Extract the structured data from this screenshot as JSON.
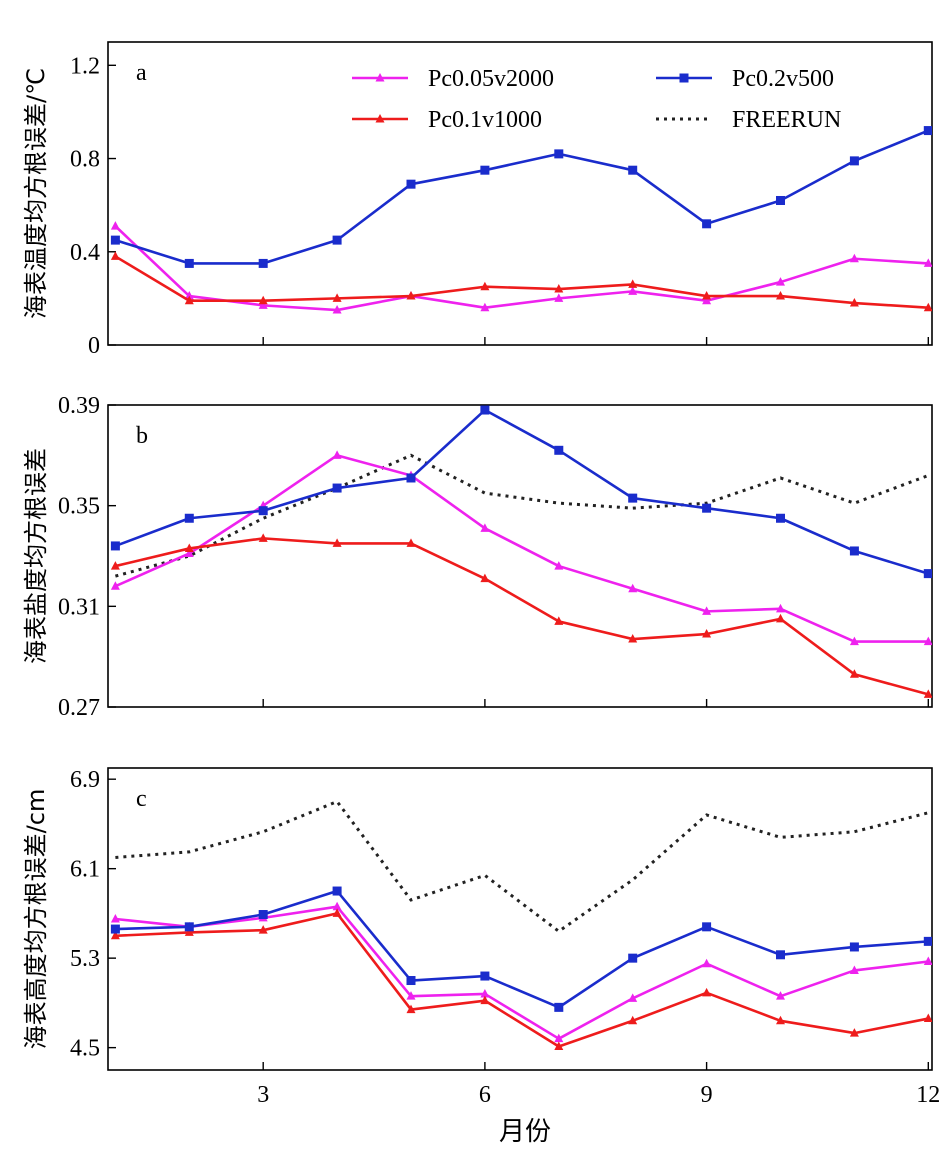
{
  "xlabel": "月份",
  "colors": {
    "Pc0.05v2000": "#ee22ee",
    "Pc0.1v1000": "#ee1c1c",
    "Pc0.2v500": "#1a2ccc",
    "FREERUN": "#222222"
  },
  "chart_data": [
    {
      "type": "line",
      "panel": "a",
      "ylabel": "海表温度均方根误差/℃",
      "x": [
        1,
        2,
        3,
        4,
        5,
        6,
        7,
        8,
        9,
        10,
        11,
        12
      ],
      "xticks": [
        3,
        6,
        9,
        12
      ],
      "xlim": [
        0.9,
        12.05
      ],
      "yticks": [
        "0",
        "0.4",
        "0.8",
        "1.2"
      ],
      "ylim": [
        0,
        1.3
      ],
      "legend": {
        "placement": "top-right",
        "entries": [
          "Pc0.05v2000",
          "Pc0.2v500",
          "Pc0.1v1000",
          "FREERUN"
        ]
      },
      "series": [
        {
          "name": "Pc0.05v2000",
          "marker": "triangle",
          "values": [
            0.51,
            0.21,
            0.17,
            0.15,
            0.21,
            0.16,
            0.2,
            0.23,
            0.19,
            0.27,
            0.37,
            0.35
          ]
        },
        {
          "name": "Pc0.1v1000",
          "marker": "triangle",
          "values": [
            0.38,
            0.19,
            0.19,
            0.2,
            0.21,
            0.25,
            0.24,
            0.26,
            0.21,
            0.21,
            0.18,
            0.16
          ]
        },
        {
          "name": "Pc0.2v500",
          "marker": "square",
          "values": [
            0.45,
            0.35,
            0.35,
            0.45,
            0.69,
            0.75,
            0.82,
            0.75,
            0.52,
            0.62,
            0.79,
            0.92
          ]
        }
      ]
    },
    {
      "type": "line",
      "panel": "b",
      "ylabel": "海表盐度均方根误差",
      "x": [
        1,
        2,
        3,
        4,
        5,
        6,
        7,
        8,
        9,
        10,
        11,
        12
      ],
      "xticks": [
        3,
        6,
        9,
        12
      ],
      "xlim": [
        0.9,
        12.05
      ],
      "yticks": [
        "0.27",
        "0.31",
        "0.35",
        "0.39"
      ],
      "ylim": [
        0.27,
        0.39
      ],
      "series": [
        {
          "name": "Pc0.05v2000",
          "marker": "triangle",
          "values": [
            0.318,
            0.331,
            0.35,
            0.37,
            0.362,
            0.341,
            0.326,
            0.317,
            0.308,
            0.309,
            0.296,
            0.296
          ]
        },
        {
          "name": "Pc0.1v1000",
          "marker": "triangle",
          "values": [
            0.326,
            0.333,
            0.337,
            0.335,
            0.335,
            0.321,
            0.304,
            0.297,
            0.299,
            0.305,
            0.283,
            0.275
          ]
        },
        {
          "name": "Pc0.2v500",
          "marker": "square",
          "values": [
            0.334,
            0.345,
            0.348,
            0.357,
            0.361,
            0.388,
            0.372,
            0.353,
            0.349,
            0.345,
            0.332,
            0.323
          ]
        },
        {
          "name": "FREERUN",
          "marker": "none",
          "values": [
            0.322,
            0.33,
            0.345,
            0.357,
            0.37,
            0.355,
            0.351,
            0.349,
            0.351,
            0.361,
            0.351,
            0.362
          ]
        }
      ]
    },
    {
      "type": "line",
      "panel": "c",
      "ylabel": "海表高度均方根误差/cm",
      "x": [
        1,
        2,
        3,
        4,
        5,
        6,
        7,
        8,
        9,
        10,
        11,
        12
      ],
      "xticks": [
        3,
        6,
        9,
        12
      ],
      "xlim": [
        0.9,
        12.05
      ],
      "yticks": [
        "4.5",
        "5.3",
        "6.1",
        "6.9"
      ],
      "ylim": [
        4.3,
        7.0
      ],
      "series": [
        {
          "name": "Pc0.05v2000",
          "marker": "triangle",
          "values": [
            5.65,
            5.58,
            5.66,
            5.76,
            4.96,
            4.98,
            4.58,
            4.94,
            5.25,
            4.96,
            5.19,
            5.27
          ]
        },
        {
          "name": "Pc0.1v1000",
          "marker": "triangle",
          "values": [
            5.5,
            5.53,
            5.55,
            5.7,
            4.84,
            4.92,
            4.51,
            4.74,
            4.99,
            4.74,
            4.63,
            4.76
          ]
        },
        {
          "name": "Pc0.2v500",
          "marker": "square",
          "values": [
            5.56,
            5.58,
            5.69,
            5.9,
            5.1,
            5.14,
            4.86,
            5.3,
            5.58,
            5.33,
            5.4,
            5.45
          ]
        },
        {
          "name": "FREERUN",
          "marker": "none",
          "values": [
            6.2,
            6.25,
            6.43,
            6.7,
            5.82,
            6.04,
            5.54,
            6.0,
            6.58,
            6.38,
            6.43,
            6.6
          ]
        }
      ]
    }
  ]
}
